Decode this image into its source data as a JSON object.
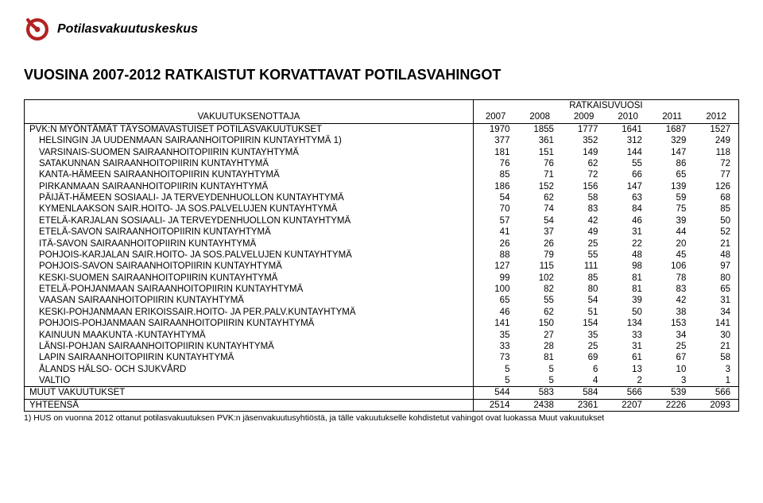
{
  "logo": {
    "text": "Potilasvakuutuskeskus",
    "icon_color": "#b22222"
  },
  "title": "VUOSINA 2007-2012 RATKAISTUT KORVATTAVAT POTILASVAHINGOT",
  "table": {
    "group_header": "RATKAISUVUOSI",
    "col1_header": "VAKUUTUKSENOTTAJA",
    "years": [
      "2007",
      "2008",
      "2009",
      "2010",
      "2011",
      "2012"
    ],
    "pvk_header": {
      "label": "PVK:N MYÖNTÄMÄT TÄYSOMAVASTUISET POTILASVAKUUTUKSET",
      "values": [
        "1970",
        "1855",
        "1777",
        "1641",
        "1687",
        "1527"
      ]
    },
    "rows": [
      {
        "label": "HELSINGIN JA UUDENMAAN SAIRAANHOITOPIIRIN KUNTAYHTYMÄ 1)",
        "values": [
          "377",
          "361",
          "352",
          "312",
          "329",
          "249"
        ]
      },
      {
        "label": "VARSINAIS-SUOMEN SAIRAANHOITOPIIRIN KUNTAYHTYMÄ",
        "values": [
          "181",
          "151",
          "149",
          "144",
          "147",
          "118"
        ]
      },
      {
        "label": "SATAKUNNAN SAIRAANHOITOPIIRIN KUNTAYHTYMÄ",
        "values": [
          "76",
          "76",
          "62",
          "55",
          "86",
          "72"
        ]
      },
      {
        "label": "KANTA-HÄMEEN SAIRAANHOITOPIIRIN KUNTAYHTYMÄ",
        "values": [
          "85",
          "71",
          "72",
          "66",
          "65",
          "77"
        ]
      },
      {
        "label": "PIRKANMAAN SAIRAANHOITOPIIRIN KUNTAYHTYMÄ",
        "values": [
          "186",
          "152",
          "156",
          "147",
          "139",
          "126"
        ]
      },
      {
        "label": "PÄIJÄT-HÄMEEN SOSIAALI- JA TERVEYDENHUOLLON KUNTAYHTYMÄ",
        "values": [
          "54",
          "62",
          "58",
          "63",
          "59",
          "68"
        ]
      },
      {
        "label": "KYMENLAAKSON SAIR.HOITO- JA SOS.PALVELUJEN KUNTAYHTYMÄ",
        "values": [
          "70",
          "74",
          "83",
          "84",
          "75",
          "85"
        ]
      },
      {
        "label": "ETELÄ-KARJALAN SOSIAALI- JA TERVEYDENHUOLLON KUNTAYHTYMÄ",
        "values": [
          "57",
          "54",
          "42",
          "46",
          "39",
          "50"
        ]
      },
      {
        "label": "ETELÄ-SAVON SAIRAANHOITOPIIRIN KUNTAYHTYMÄ",
        "values": [
          "41",
          "37",
          "49",
          "31",
          "44",
          "52"
        ]
      },
      {
        "label": "ITÄ-SAVON SAIRAANHOITOPIIRIN KUNTAYHTYMÄ",
        "values": [
          "26",
          "26",
          "25",
          "22",
          "20",
          "21"
        ]
      },
      {
        "label": "POHJOIS-KARJALAN SAIR.HOITO- JA SOS.PALVELUJEN KUNTAYHTYMÄ",
        "values": [
          "88",
          "79",
          "55",
          "48",
          "45",
          "48"
        ]
      },
      {
        "label": "POHJOIS-SAVON SAIRAANHOITOPIIRIN KUNTAYHTYMÄ",
        "values": [
          "127",
          "115",
          "111",
          "98",
          "106",
          "97"
        ]
      },
      {
        "label": "KESKI-SUOMEN SAIRAANHOITOPIIRIN KUNTAYHTYMÄ",
        "values": [
          "99",
          "102",
          "85",
          "81",
          "78",
          "80"
        ]
      },
      {
        "label": "ETELÄ-POHJANMAAN SAIRAANHOITOPIIRIN KUNTAYHTYMÄ",
        "values": [
          "100",
          "82",
          "80",
          "81",
          "83",
          "65"
        ]
      },
      {
        "label": "VAASAN SAIRAANHOITOPIIRIN KUNTAYHTYMÄ",
        "values": [
          "65",
          "55",
          "54",
          "39",
          "42",
          "31"
        ]
      },
      {
        "label": "KESKI-POHJANMAAN ERIKOISSAIR.HOITO- JA PER.PALV.KUNTAYHTYMÄ",
        "values": [
          "46",
          "62",
          "51",
          "50",
          "38",
          "34"
        ]
      },
      {
        "label": "POHJOIS-POHJANMAAN SAIRAANHOITOPIIRIN KUNTAYHTYMÄ",
        "values": [
          "141",
          "150",
          "154",
          "134",
          "153",
          "141"
        ]
      },
      {
        "label": "KAINUUN MAAKUNTA -KUNTAYHTYMÄ",
        "values": [
          "35",
          "27",
          "35",
          "33",
          "34",
          "30"
        ]
      },
      {
        "label": "LÄNSI-POHJAN SAIRAANHOITOPIIRIN KUNTAYHTYMÄ",
        "values": [
          "33",
          "28",
          "25",
          "31",
          "25",
          "21"
        ]
      },
      {
        "label": "LAPIN SAIRAANHOITOPIIRIN KUNTAYHTYMÄ",
        "values": [
          "73",
          "81",
          "69",
          "61",
          "67",
          "58"
        ]
      },
      {
        "label": "ÅLANDS HÄLSO- OCH SJUKVÅRD",
        "values": [
          "5",
          "5",
          "6",
          "13",
          "10",
          "3"
        ]
      },
      {
        "label": "VALTIO",
        "values": [
          "5",
          "5",
          "4",
          "2",
          "3",
          "1"
        ]
      }
    ],
    "muut": {
      "label": "MUUT VAKUUTUKSET",
      "values": [
        "544",
        "583",
        "584",
        "566",
        "539",
        "566"
      ]
    },
    "yhteensa": {
      "label": "YHTEENSÄ",
      "values": [
        "2514",
        "2438",
        "2361",
        "2207",
        "2226",
        "2093"
      ]
    }
  },
  "footnote": "1) HUS on vuonna 2012 ottanut potilasvakuutuksen PVK:n jäsenvakuutusyhtiöstä, ja tälle vakuutukselle kohdistetut vahingot ovat luokassa Muut vakuutukset"
}
